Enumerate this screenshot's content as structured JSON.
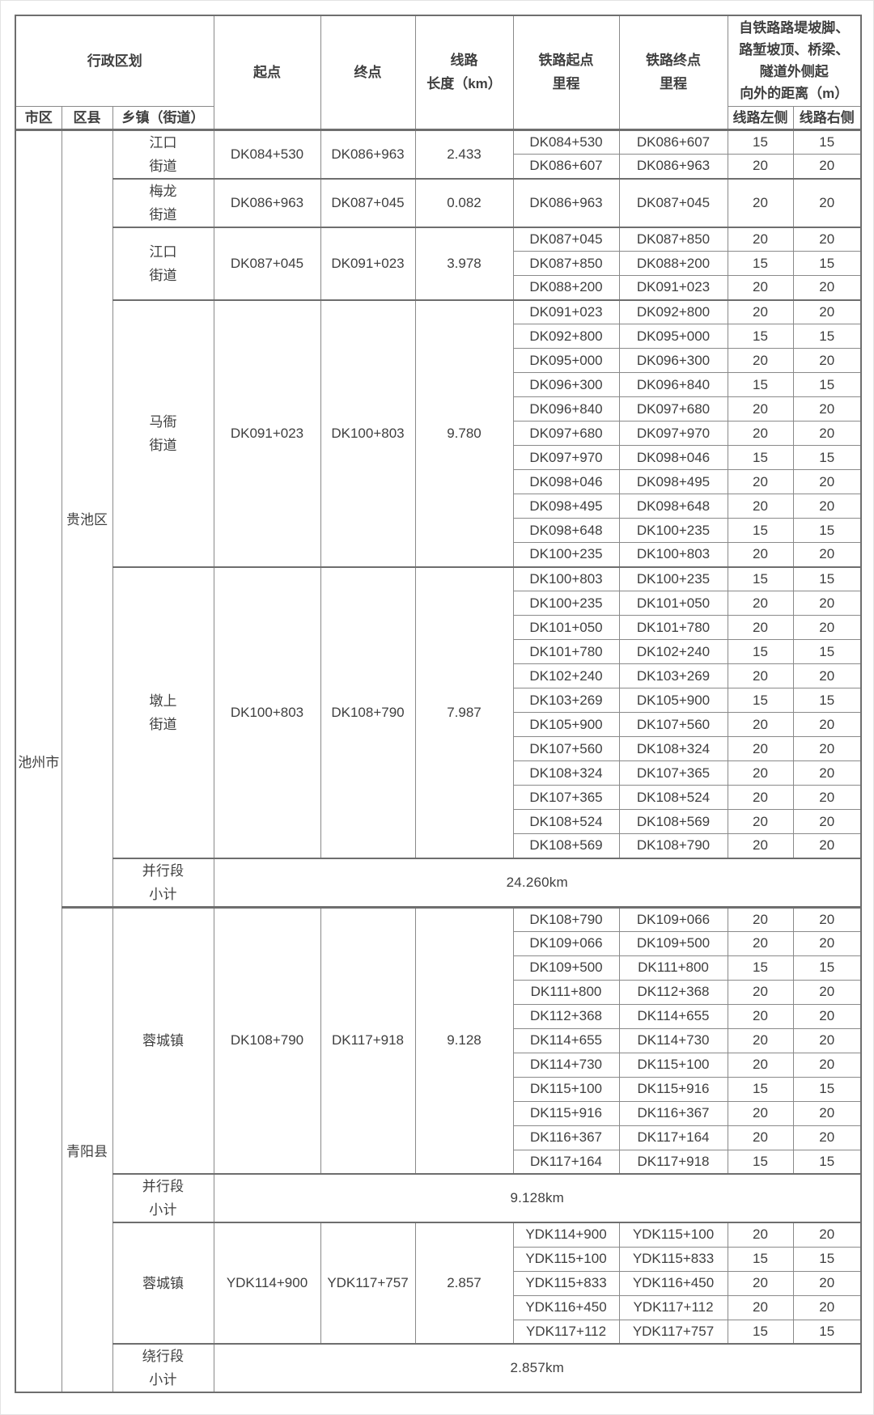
{
  "style": {
    "text_color": "#3f3f3f",
    "border_color": "#8a8a8a",
    "thick_border_color": "#6e6e6e",
    "background": "#ffffff"
  },
  "table": {
    "header": {
      "admin_group": "行政区划",
      "city_col": "市区",
      "district_col": "区县",
      "township_col": "乡镇（街道）",
      "start": "起点",
      "end": "终点",
      "length_lines": [
        "线路",
        "长度（km）"
      ],
      "rail_start_lines": [
        "铁路起点",
        "里程"
      ],
      "rail_end_lines": [
        "铁路终点",
        "里程"
      ],
      "distance_group_lines": [
        "自铁路路堤坡脚、",
        "路堑坡顶、桥梁、",
        "隧道外侧起",
        "向外的距离（m）"
      ],
      "left_col": "线路左侧",
      "right_col": "线路右侧"
    },
    "city": "池州市",
    "districts": [
      {
        "name": "贵池区",
        "sections": [
          {
            "township": [
              "江口",
              "街道"
            ],
            "start": "DK084+530",
            "end": "DK086+963",
            "length": "2.433",
            "segments": [
              [
                "DK084+530",
                "DK086+607",
                "15",
                "15"
              ],
              [
                "DK086+607",
                "DK086+963",
                "20",
                "20"
              ]
            ]
          },
          {
            "township": [
              "梅龙",
              "街道"
            ],
            "start": "DK086+963",
            "end": "DK087+045",
            "length": "0.082",
            "segments": [
              [
                "DK086+963",
                "DK087+045",
                "20",
                "20"
              ]
            ]
          },
          {
            "township": [
              "江口",
              "街道"
            ],
            "start": "DK087+045",
            "end": "DK091+023",
            "length": "3.978",
            "segments": [
              [
                "DK087+045",
                "DK087+850",
                "20",
                "20"
              ],
              [
                "DK087+850",
                "DK088+200",
                "15",
                "15"
              ],
              [
                "DK088+200",
                "DK091+023",
                "20",
                "20"
              ]
            ]
          },
          {
            "township": [
              "马衙",
              "街道"
            ],
            "start": "DK091+023",
            "end": "DK100+803",
            "length": "9.780",
            "segments": [
              [
                "DK091+023",
                "DK092+800",
                "20",
                "20"
              ],
              [
                "DK092+800",
                "DK095+000",
                "15",
                "15"
              ],
              [
                "DK095+000",
                "DK096+300",
                "20",
                "20"
              ],
              [
                "DK096+300",
                "DK096+840",
                "15",
                "15"
              ],
              [
                "DK096+840",
                "DK097+680",
                "20",
                "20"
              ],
              [
                "DK097+680",
                "DK097+970",
                "20",
                "20"
              ],
              [
                "DK097+970",
                "DK098+046",
                "15",
                "15"
              ],
              [
                "DK098+046",
                "DK098+495",
                "20",
                "20"
              ],
              [
                "DK098+495",
                "DK098+648",
                "20",
                "20"
              ],
              [
                "DK098+648",
                "DK100+235",
                "15",
                "15"
              ],
              [
                "DK100+235",
                "DK100+803",
                "20",
                "20"
              ]
            ]
          },
          {
            "township": [
              "墩上",
              "街道"
            ],
            "start": "DK100+803",
            "end": "DK108+790",
            "length": "7.987",
            "segments": [
              [
                "DK100+803",
                "DK100+235",
                "15",
                "15"
              ],
              [
                "DK100+235",
                "DK101+050",
                "20",
                "20"
              ],
              [
                "DK101+050",
                "DK101+780",
                "20",
                "20"
              ],
              [
                "DK101+780",
                "DK102+240",
                "15",
                "15"
              ],
              [
                "DK102+240",
                "DK103+269",
                "20",
                "20"
              ],
              [
                "DK103+269",
                "DK105+900",
                "15",
                "15"
              ],
              [
                "DK105+900",
                "DK107+560",
                "20",
                "20"
              ],
              [
                "DK107+560",
                "DK108+324",
                "20",
                "20"
              ],
              [
                "DK108+324",
                "DK107+365",
                "20",
                "20"
              ],
              [
                "DK107+365",
                "DK108+524",
                "20",
                "20"
              ],
              [
                "DK108+524",
                "DK108+569",
                "20",
                "20"
              ],
              [
                "DK108+569",
                "DK108+790",
                "20",
                "20"
              ]
            ]
          },
          {
            "subtotal": true,
            "label": [
              "并行段",
              "小计"
            ],
            "value": "24.260km"
          }
        ]
      },
      {
        "name": "青阳县",
        "sections": [
          {
            "township": [
              "蓉城镇"
            ],
            "start": "DK108+790",
            "end": "DK117+918",
            "length": "9.128",
            "segments": [
              [
                "DK108+790",
                "DK109+066",
                "20",
                "20"
              ],
              [
                "DK109+066",
                "DK109+500",
                "20",
                "20"
              ],
              [
                "DK109+500",
                "DK111+800",
                "15",
                "15"
              ],
              [
                "DK111+800",
                "DK112+368",
                "20",
                "20"
              ],
              [
                "DK112+368",
                "DK114+655",
                "20",
                "20"
              ],
              [
                "DK114+655",
                "DK114+730",
                "20",
                "20"
              ],
              [
                "DK114+730",
                "DK115+100",
                "20",
                "20"
              ],
              [
                "DK115+100",
                "DK115+916",
                "15",
                "15"
              ],
              [
                "DK115+916",
                "DK116+367",
                "20",
                "20"
              ],
              [
                "DK116+367",
                "DK117+164",
                "20",
                "20"
              ],
              [
                "DK117+164",
                "DK117+918",
                "15",
                "15"
              ]
            ]
          },
          {
            "subtotal": true,
            "label": [
              "并行段",
              "小计"
            ],
            "value": "9.128km"
          },
          {
            "township": [
              "蓉城镇"
            ],
            "start": "YDK114+900",
            "end": "YDK117+757",
            "length": "2.857",
            "segments": [
              [
                "YDK114+900",
                "YDK115+100",
                "20",
                "20"
              ],
              [
                "YDK115+100",
                "YDK115+833",
                "15",
                "15"
              ],
              [
                "YDK115+833",
                "YDK116+450",
                "20",
                "20"
              ],
              [
                "YDK116+450",
                "YDK117+112",
                "20",
                "20"
              ],
              [
                "YDK117+112",
                "YDK117+757",
                "15",
                "15"
              ]
            ]
          },
          {
            "subtotal": true,
            "label": [
              "绕行段",
              "小计"
            ],
            "value": "2.857km"
          }
        ]
      }
    ]
  }
}
